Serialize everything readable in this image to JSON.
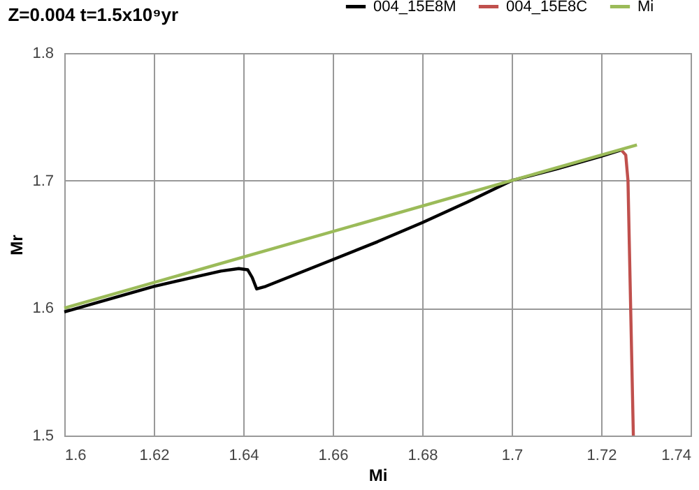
{
  "chart_data": {
    "type": "line",
    "title": "Z=0.004 t=1.5x10⁹yr",
    "xlabel": "Mi",
    "ylabel": "Mr",
    "xlim": [
      1.6,
      1.74
    ],
    "ylim": [
      1.5,
      1.8
    ],
    "xticks": [
      1.6,
      1.62,
      1.64,
      1.66,
      1.68,
      1.7,
      1.72,
      1.74
    ],
    "yticks": [
      1.5,
      1.6,
      1.7,
      1.8
    ],
    "grid": true,
    "legend": "top right",
    "marker": "none",
    "line_style": "solid",
    "series": [
      {
        "name": "004_15E8M",
        "color": "#000000",
        "x": [
          1.6,
          1.61,
          1.62,
          1.63,
          1.635,
          1.639,
          1.641,
          1.642,
          1.643,
          1.645,
          1.65,
          1.66,
          1.67,
          1.68,
          1.69,
          1.7,
          1.71,
          1.72,
          1.7245
        ],
        "values": [
          1.597,
          1.607,
          1.617,
          1.625,
          1.629,
          1.631,
          1.63,
          1.624,
          1.615,
          1.617,
          1.624,
          1.638,
          1.652,
          1.667,
          1.683,
          1.7,
          1.709,
          1.719,
          1.724
        ]
      },
      {
        "name": "004_15E8C",
        "color": "#c0504d",
        "x": [
          1.7245,
          1.7255,
          1.726,
          1.7263,
          1.7266,
          1.7269,
          1.7272
        ],
        "values": [
          1.724,
          1.72,
          1.7,
          1.65,
          1.6,
          1.55,
          1.5
        ]
      },
      {
        "name": "Mi",
        "color": "#9bbb59",
        "x": [
          1.6,
          1.7,
          1.728
        ],
        "values": [
          1.6,
          1.7,
          1.728
        ]
      }
    ]
  }
}
